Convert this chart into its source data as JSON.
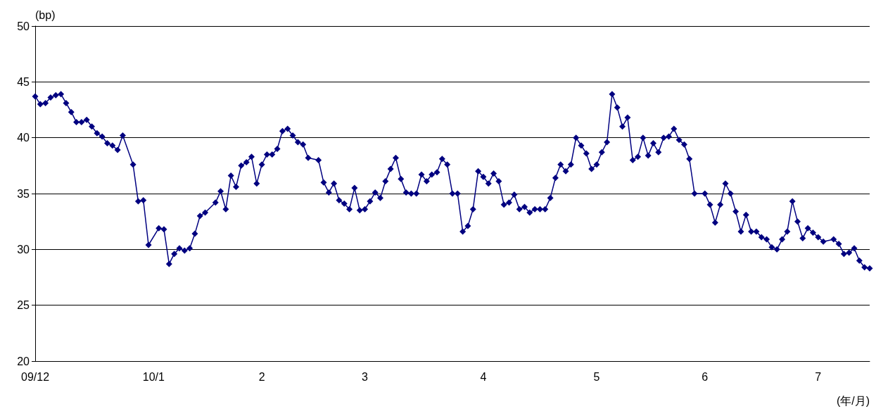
{
  "chart_data": {
    "type": "line",
    "xlabel": "(年/月)",
    "ylabel": "(bp)",
    "categories": [
      "09/12",
      null,
      null,
      null,
      null,
      null,
      null,
      null,
      null,
      null,
      null,
      null,
      null,
      null,
      null,
      null,
      null,
      null,
      null,
      null,
      null,
      null,
      null,
      "10/1",
      null,
      null,
      null,
      null,
      null,
      null,
      null,
      null,
      null,
      null,
      null,
      null,
      null,
      null,
      null,
      null,
      null,
      null,
      null,
      null,
      "2",
      null,
      null,
      null,
      null,
      null,
      null,
      null,
      null,
      null,
      null,
      null,
      null,
      null,
      null,
      null,
      null,
      null,
      null,
      null,
      "3",
      null,
      null,
      null,
      null,
      null,
      null,
      null,
      null,
      null,
      null,
      null,
      null,
      null,
      null,
      null,
      null,
      null,
      null,
      null,
      null,
      null,
      null,
      "4",
      null,
      null,
      null,
      null,
      null,
      null,
      null,
      null,
      null,
      null,
      null,
      null,
      null,
      null,
      null,
      null,
      null,
      null,
      null,
      null,
      null,
      "5",
      null,
      null,
      null,
      null,
      null,
      null,
      null,
      null,
      null,
      null,
      null,
      null,
      null,
      null,
      null,
      null,
      null,
      null,
      null,
      null,
      "6",
      null,
      null,
      null,
      null,
      null,
      null,
      null,
      null,
      null,
      null,
      null,
      null,
      null,
      null,
      null,
      null,
      null,
      null,
      null,
      null,
      null,
      "7",
      null,
      null,
      null,
      null,
      null,
      null,
      null,
      null,
      null,
      null
    ],
    "series": [
      {
        "color": "#000080",
        "values": [
          43.7,
          43.0,
          43.1,
          43.6,
          43.8,
          43.9,
          43.1,
          42.3,
          41.4,
          41.4,
          41.6,
          41.0,
          40.4,
          40.1,
          39.5,
          39.3,
          38.9,
          40.2,
          null,
          37.6,
          34.3,
          34.4,
          30.4,
          null,
          31.9,
          31.8,
          28.7,
          29.6,
          30.1,
          29.9,
          30.1,
          31.4,
          33.0,
          33.3,
          null,
          34.2,
          35.2,
          33.6,
          36.6,
          35.6,
          37.5,
          37.8,
          38.3,
          35.9,
          37.6,
          38.5,
          38.5,
          39.0,
          40.6,
          40.8,
          40.2,
          39.6,
          39.4,
          38.2,
          null,
          38.0,
          36.0,
          35.1,
          35.9,
          34.4,
          34.1,
          33.6,
          35.5,
          33.5,
          33.6,
          34.3,
          35.1,
          34.6,
          36.1,
          37.2,
          38.2,
          36.3,
          35.1,
          35.0,
          35.0,
          36.7,
          36.1,
          36.7,
          36.9,
          38.1,
          37.6,
          35.0,
          35.0,
          31.6,
          32.1,
          33.6,
          37.0,
          36.5,
          35.9,
          36.8,
          36.1,
          34.0,
          34.2,
          34.9,
          33.6,
          33.8,
          33.3,
          33.6,
          33.6,
          33.6,
          34.6,
          36.4,
          37.6,
          37.0,
          37.6,
          40.0,
          39.3,
          38.6,
          37.2,
          37.6,
          38.7,
          39.6,
          43.9,
          42.7,
          41.0,
          41.8,
          38.0,
          38.3,
          40.0,
          38.4,
          39.5,
          38.7,
          40.0,
          40.1,
          40.8,
          39.8,
          39.4,
          38.1,
          35.0,
          null,
          35.0,
          34.0,
          32.4,
          34.0,
          35.9,
          35.0,
          33.4,
          31.6,
          33.1,
          31.6,
          31.6,
          31.1,
          30.9,
          30.2,
          30.0,
          30.9,
          31.6,
          34.3,
          32.5,
          31.0,
          31.9,
          31.5,
          31.1,
          30.7,
          null,
          30.9,
          30.5,
          29.6,
          29.7,
          30.1,
          29.0,
          28.4,
          28.3
        ]
      }
    ],
    "ylim": [
      20,
      50
    ],
    "yticks": [
      20,
      25,
      30,
      35,
      40,
      45,
      50
    ],
    "grid": "y",
    "marker": "diamond",
    "line_style": "solid"
  }
}
